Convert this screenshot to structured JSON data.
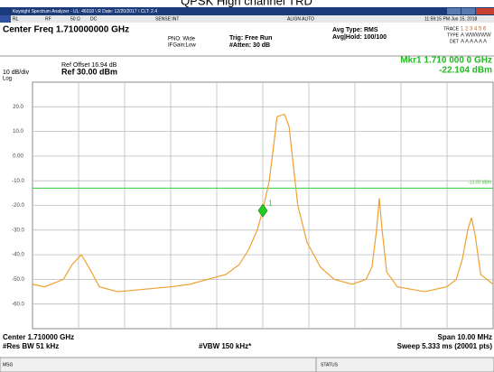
{
  "title": "QPSK High channel TRD",
  "window": {
    "title": "Keysight Spectrum Analyzer - UL: 46018 \\ R Date: 12/20/2017 \\ CLT: 2.4"
  },
  "status_row": {
    "rl": "RL",
    "rf": "RF",
    "impedance": "50 Ω",
    "coupling": "DC",
    "sense": "SENSE:INT",
    "align": "ALIGN AUTO",
    "clock": "11:59:15 PM Jun 15, 2018"
  },
  "header": {
    "center_freq": "Center Freq 1.710000000 GHz",
    "pno": "PNO: Wide",
    "ifgain": "IFGain:Low",
    "trig": "Trig: Free Run",
    "atten": "#Atten: 30 dB",
    "avg_type": "Avg Type: RMS",
    "avg_hold": "Avg|Hold: 100/100",
    "trace_row": "TRACE",
    "trace_nums": "1 2 3 4 5 6",
    "type_row": "TYPE",
    "type_vals": "A WWWWW",
    "det_row": "DET",
    "det_vals": "A A A A A A"
  },
  "scale": {
    "ref_offset": "Ref Offset 16.94 dB",
    "div": "10 dB/div",
    "ref": "Ref 30.00 dBm",
    "log": "Log"
  },
  "marker_readout": {
    "freq": "Mkr1 1.710 000 0 GHz",
    "level": "-22.104 dBm"
  },
  "spectrum": {
    "xlim": [
      1705,
      1715
    ],
    "ylim": [
      -70,
      30
    ],
    "xticks": [
      1706,
      1707,
      1708,
      1709,
      1710,
      1711,
      1712,
      1713,
      1714
    ],
    "yticks": [
      {
        "value": 20,
        "label": "20.0"
      },
      {
        "value": 10,
        "label": "10.0"
      },
      {
        "value": 0,
        "label": "0.00"
      },
      {
        "value": -10,
        "label": "-10.0"
      },
      {
        "value": -20,
        "label": "-20.0"
      },
      {
        "value": -30,
        "label": "-30.0"
      },
      {
        "value": -40,
        "label": "-40.0"
      },
      {
        "value": -50,
        "label": "-50.0"
      },
      {
        "value": -60,
        "label": "-60.0"
      }
    ],
    "display_line": {
      "value": -13,
      "label": "-13.00 dBm",
      "color": "#33cc33"
    },
    "trace": {
      "color": "#f0a030",
      "x": [
        1705.0,
        1705.27,
        1705.67,
        1705.86,
        1706.06,
        1706.25,
        1706.45,
        1706.84,
        1707.43,
        1708.02,
        1708.41,
        1708.8,
        1709.2,
        1709.49,
        1709.69,
        1709.88,
        1710.0,
        1710.14,
        1710.24,
        1710.31,
        1710.47,
        1710.57,
        1710.67,
        1710.76,
        1710.96,
        1711.25,
        1711.55,
        1711.94,
        1712.24,
        1712.37,
        1712.47,
        1712.53,
        1712.59,
        1712.69,
        1712.92,
        1713.51,
        1714.0,
        1714.2,
        1714.33,
        1714.45,
        1714.53,
        1714.61,
        1714.73,
        1715.0
      ],
      "y": [
        -52,
        -53,
        -50,
        -44,
        -40,
        -46,
        -53,
        -55,
        -54,
        -53,
        -52,
        -50,
        -48,
        -44,
        -38,
        -30,
        -22,
        -10,
        5,
        16,
        17,
        12,
        -5,
        -20,
        -35,
        -45,
        -50,
        -52,
        -50,
        -45,
        -30,
        -17,
        -30,
        -47,
        -53,
        -55,
        -53,
        -50,
        -42,
        -30,
        -25,
        -32,
        -48,
        -52
      ]
    },
    "marker": {
      "x": 1710,
      "y": -22.104,
      "label": "1",
      "color": "#22cc22"
    }
  },
  "footer": {
    "center": "Center 1.710000 GHz",
    "rbw": "#Res BW 51 kHz",
    "vbw": "#VBW 150 kHz*",
    "span": "Span 10.00 MHz",
    "sweep": "Sweep  5.333 ms (20001 pts)"
  },
  "statusbar": {
    "msg": "MSG",
    "status": "STATUS"
  }
}
